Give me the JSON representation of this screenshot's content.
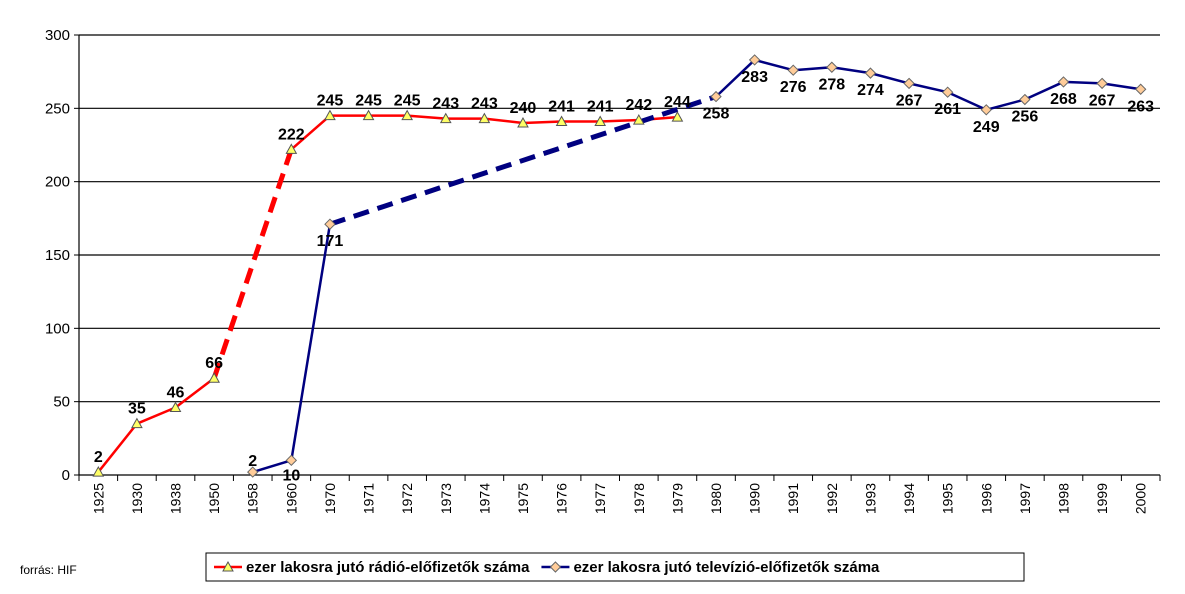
{
  "chart_data": {
    "type": "line",
    "categories": [
      "1925",
      "1930",
      "1938",
      "1950",
      "1958",
      "1960",
      "1970",
      "1971",
      "1972",
      "1973",
      "1974",
      "1975",
      "1976",
      "1977",
      "1978",
      "1979",
      "1980",
      "1990",
      "1991",
      "1992",
      "1993",
      "1994",
      "1995",
      "1996",
      "1997",
      "1998",
      "1999",
      "2000"
    ],
    "ylim": [
      0,
      300
    ],
    "yticks": [
      "0",
      "50",
      "100",
      "150",
      "200",
      "250",
      "300"
    ],
    "grid": true,
    "legend_position": "bottom",
    "series": [
      {
        "name": "ezer lakosra jutó rádió-előfizetők száma",
        "color": "#ff0000",
        "marker": "triangle",
        "marker_color": "#ffff66",
        "values": [
          2,
          35,
          46,
          66,
          null,
          222,
          245,
          245,
          245,
          243,
          243,
          240,
          241,
          241,
          242,
          244,
          null,
          null,
          null,
          null,
          null,
          null,
          null,
          null,
          null,
          null,
          null,
          null
        ],
        "labels": [
          "2",
          "35",
          "46",
          "66",
          "",
          "222",
          "245",
          "245",
          "245",
          "243",
          "243",
          "240",
          "241",
          "241",
          "242",
          "244",
          "",
          "",
          "",
          "",
          "",
          "",
          "",
          "",
          "",
          "",
          "",
          ""
        ],
        "dashed_segments": [
          [
            3,
            5
          ]
        ]
      },
      {
        "name": "ezer lakosra jutó televízió-előfizetők száma",
        "color": "#000080",
        "marker": "diamond",
        "marker_color": "#ffcc99",
        "values": [
          null,
          null,
          null,
          null,
          2,
          10,
          171,
          null,
          null,
          null,
          null,
          null,
          null,
          null,
          null,
          null,
          258,
          283,
          276,
          278,
          274,
          267,
          261,
          249,
          256,
          268,
          267,
          263
        ],
        "labels": [
          "",
          "",
          "",
          "",
          "2",
          "10",
          "171",
          "",
          "",
          "",
          "",
          "",
          "",
          "",
          "",
          "",
          "258",
          "283",
          "276",
          "278",
          "274",
          "267",
          "261",
          "249",
          "256",
          "268",
          "267",
          "263"
        ],
        "dashed_segments": [
          [
            6,
            16
          ]
        ]
      }
    ]
  },
  "source_note": "forrás: HIF"
}
